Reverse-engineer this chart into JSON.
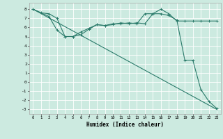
{
  "xlabel": "Humidex (Indice chaleur)",
  "xlim": [
    -0.5,
    23.5
  ],
  "ylim": [
    -3.5,
    8.7
  ],
  "yticks": [
    -3,
    -2,
    -1,
    0,
    1,
    2,
    3,
    4,
    5,
    6,
    7,
    8
  ],
  "xticks": [
    0,
    1,
    2,
    3,
    4,
    5,
    6,
    7,
    8,
    9,
    10,
    11,
    12,
    13,
    14,
    15,
    16,
    17,
    18,
    19,
    20,
    21,
    22,
    23
  ],
  "bg_color": "#cceae0",
  "grid_color": "#ffffff",
  "line_color": "#2a7a6a",
  "line1_x": [
    0,
    1,
    2,
    3,
    4,
    5,
    6,
    7,
    8,
    9,
    10,
    11,
    12,
    13,
    14,
    15,
    16,
    17,
    18,
    19,
    20,
    21,
    22,
    23
  ],
  "line1_y": [
    8.0,
    7.6,
    7.5,
    7.0,
    5.0,
    5.0,
    5.2,
    5.8,
    6.3,
    6.2,
    6.4,
    6.4,
    6.5,
    6.4,
    7.5,
    7.5,
    8.0,
    7.5,
    6.7,
    6.7,
    6.7,
    6.7,
    6.7,
    6.7
  ],
  "line2_x": [
    0,
    23
  ],
  "line2_y": [
    8.0,
    -3.0
  ],
  "line3_x": [
    0,
    2,
    3,
    4,
    5,
    6,
    7,
    8,
    9,
    10,
    11,
    12,
    13,
    14,
    15,
    16,
    17,
    18,
    19,
    20,
    21,
    22,
    23
  ],
  "line3_y": [
    8.0,
    7.2,
    5.7,
    5.0,
    5.0,
    5.5,
    5.9,
    6.3,
    6.2,
    6.3,
    6.5,
    6.4,
    6.5,
    6.4,
    7.5,
    7.5,
    7.3,
    6.8,
    2.4,
    2.4,
    -0.8,
    -2.1,
    -2.9
  ]
}
